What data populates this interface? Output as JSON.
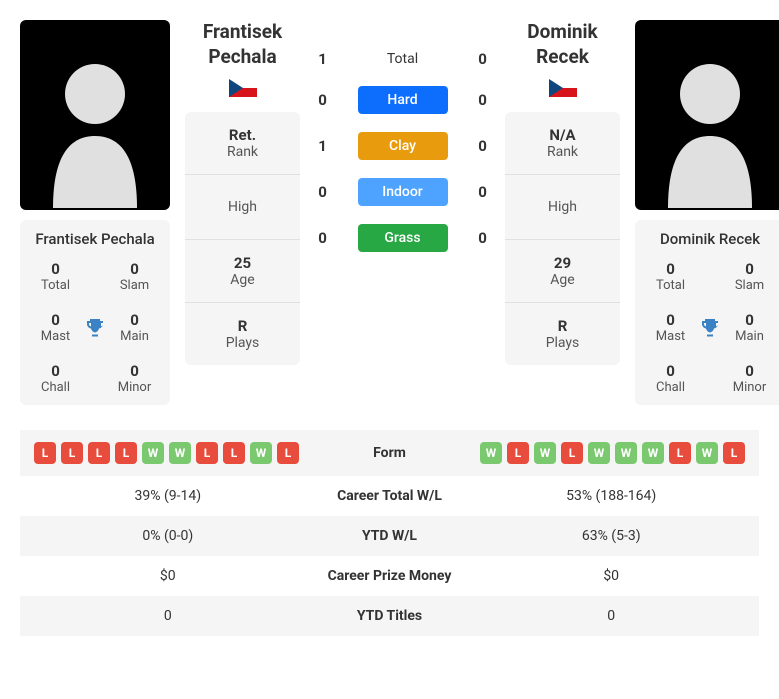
{
  "player1": {
    "name": "Frantisek Pechala",
    "flag": "cz",
    "rank_val": "Ret.",
    "rank_lbl": "Rank",
    "high_lbl": "High",
    "age_val": "25",
    "age_lbl": "Age",
    "plays_val": "R",
    "plays_lbl": "Plays",
    "titles": {
      "total_val": "0",
      "total_lbl": "Total",
      "slam_val": "0",
      "slam_lbl": "Slam",
      "mast_val": "0",
      "mast_lbl": "Mast",
      "main_val": "0",
      "main_lbl": "Main",
      "chall_val": "0",
      "chall_lbl": "Chall",
      "minor_val": "0",
      "minor_lbl": "Minor"
    }
  },
  "player2": {
    "name": "Dominik Recek",
    "flag": "cz",
    "rank_val": "N/A",
    "rank_lbl": "Rank",
    "high_lbl": "High",
    "age_val": "29",
    "age_lbl": "Age",
    "plays_val": "R",
    "plays_lbl": "Plays",
    "titles": {
      "total_val": "0",
      "total_lbl": "Total",
      "slam_val": "0",
      "slam_lbl": "Slam",
      "mast_val": "0",
      "mast_lbl": "Mast",
      "main_val": "0",
      "main_lbl": "Main",
      "chall_val": "0",
      "chall_lbl": "Chall",
      "minor_val": "0",
      "minor_lbl": "Minor"
    }
  },
  "h2h": {
    "total_label": "Total",
    "total_p1": "1",
    "total_p2": "0",
    "hard_label": "Hard",
    "hard_p1": "0",
    "hard_p2": "0",
    "clay_label": "Clay",
    "clay_p1": "1",
    "clay_p2": "0",
    "indoor_label": "Indoor",
    "indoor_p1": "0",
    "indoor_p2": "0",
    "grass_label": "Grass",
    "grass_p1": "0",
    "grass_p2": "0"
  },
  "form": {
    "label": "Form",
    "p1": [
      "L",
      "L",
      "L",
      "L",
      "W",
      "W",
      "L",
      "L",
      "W",
      "L"
    ],
    "p2": [
      "W",
      "L",
      "W",
      "L",
      "W",
      "W",
      "W",
      "L",
      "W",
      "L"
    ]
  },
  "stats": {
    "career_wl_label": "Career Total W/L",
    "career_wl_p1": "39% (9-14)",
    "career_wl_p2": "53% (188-164)",
    "ytd_wl_label": "YTD W/L",
    "ytd_wl_p1": "0% (0-0)",
    "ytd_wl_p2": "63% (5-3)",
    "prize_label": "Career Prize Money",
    "prize_p1": "$0",
    "prize_p2": "$0",
    "ytd_titles_label": "YTD Titles",
    "ytd_titles_p1": "0",
    "ytd_titles_p2": "0"
  },
  "colors": {
    "hard": "#0d6efd",
    "clay": "#e89b0d",
    "indoor": "#4da3ff",
    "grass": "#28a745",
    "win": "#7bc96f",
    "loss": "#e74c3c"
  }
}
